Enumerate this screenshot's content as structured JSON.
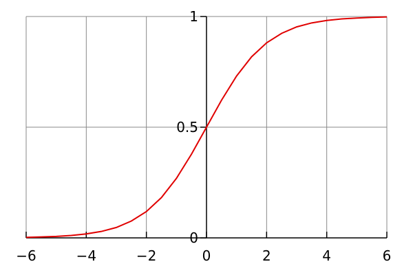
{
  "chart_data": {
    "type": "line",
    "title": "",
    "xlabel": "",
    "ylabel": "",
    "xlim": [
      -6,
      6
    ],
    "ylim": [
      0,
      1
    ],
    "grid": true,
    "x_ticks": [
      -6,
      -4,
      -2,
      0,
      2,
      4,
      6
    ],
    "x_tick_labels": [
      "−6",
      "−4",
      "−2",
      "0",
      "2",
      "4",
      "6"
    ],
    "y_ticks": [
      0,
      0.5,
      1
    ],
    "y_tick_labels": [
      "0",
      "0.5",
      "1"
    ],
    "series": [
      {
        "color": "#e00000",
        "x": [
          -6,
          -5.5,
          -5,
          -4.5,
          -4,
          -3.5,
          -3,
          -2.5,
          -2,
          -1.5,
          -1,
          -0.5,
          0,
          0.5,
          1,
          1.5,
          2,
          2.5,
          3,
          3.5,
          4,
          4.5,
          5,
          5.5,
          6
        ],
        "y": [
          0.0025,
          0.0041,
          0.0067,
          0.011,
          0.018,
          0.029,
          0.047,
          0.076,
          0.119,
          0.182,
          0.269,
          0.378,
          0.5,
          0.622,
          0.731,
          0.818,
          0.881,
          0.924,
          0.953,
          0.971,
          0.982,
          0.989,
          0.993,
          0.996,
          0.998
        ]
      }
    ]
  }
}
